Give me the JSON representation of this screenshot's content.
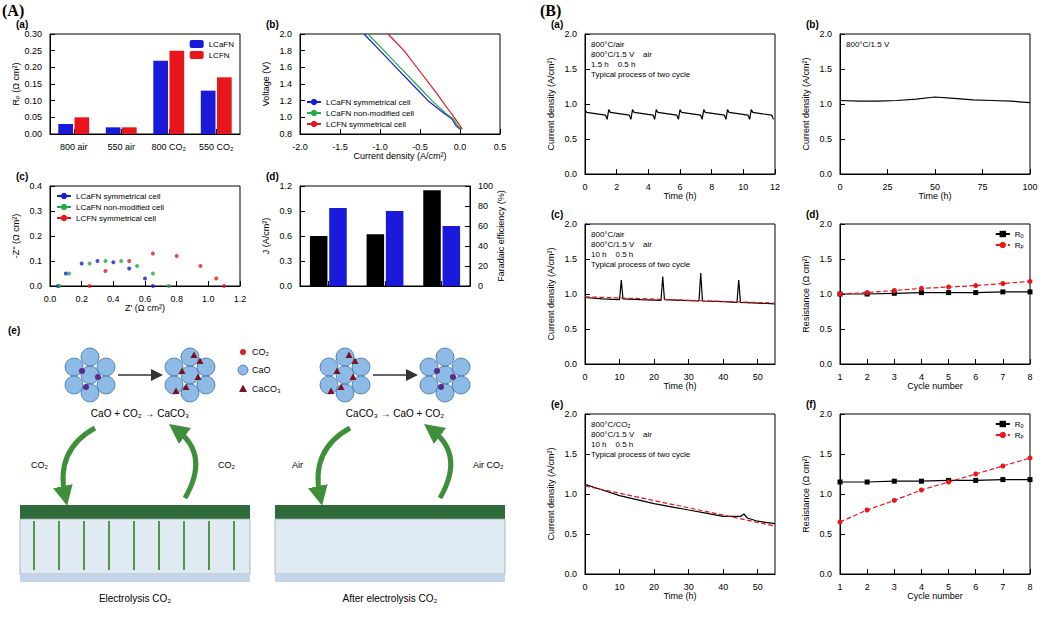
{
  "groups": [
    "(A)",
    "(B)"
  ],
  "chart_data": [
    {
      "title": "(a)",
      "type": "bar",
      "categories": [
        "800 air",
        "550 air",
        "800 CO₂",
        "550 CO₂"
      ],
      "series": [
        {
          "name": "LCaFN",
          "color": "#1a1adb",
          "values": [
            0.03,
            0.02,
            0.22,
            0.13
          ]
        },
        {
          "name": "LCFN",
          "color": "#e8161b",
          "values": [
            0.05,
            0.02,
            0.25,
            0.17
          ]
        }
      ],
      "y_label": "Rₚ (Ω cm²)",
      "ylim": [
        0,
        0.3
      ],
      "yticks": [
        {
          "value": 0,
          "label": "0.00"
        },
        0.05,
        {
          "value": 0.1,
          "label": "0.10"
        },
        0.15,
        {
          "value": 0.2,
          "label": "0.20"
        },
        0.25,
        {
          "value": 0.3,
          "label": "0.30"
        }
      ],
      "legend": "upper right"
    },
    {
      "title": "(b)",
      "type": "line",
      "series": [
        {
          "name": "LCaFN symmetrical cell",
          "color": "#1a1adb",
          "x": [
            -1.2,
            -1.0,
            -0.8,
            -0.6,
            -0.4,
            -0.2,
            -0.1,
            -0.05,
            0.0
          ],
          "values": [
            2.0,
            1.8,
            1.6,
            1.4,
            1.2,
            1.05,
            0.98,
            0.9,
            0.86
          ]
        },
        {
          "name": "LCaFN non-modified cell",
          "color": "#22aa44",
          "x": [
            -1.15,
            -0.95,
            -0.75,
            -0.55,
            -0.35,
            -0.18,
            -0.08,
            -0.03,
            0.02
          ],
          "values": [
            2.0,
            1.8,
            1.6,
            1.4,
            1.2,
            1.05,
            0.98,
            0.9,
            0.86
          ]
        },
        {
          "name": "LCFN symmetrical cell",
          "color": "#e8161b",
          "x": [
            -0.9,
            -0.7,
            -0.5,
            -0.3,
            -0.15,
            -0.05,
            0.0,
            0.03
          ],
          "values": [
            2.0,
            1.8,
            1.55,
            1.3,
            1.1,
            0.97,
            0.9,
            0.86
          ]
        }
      ],
      "x_label": "Current density (A/cm²)",
      "y_label": "Voltage (V)",
      "xlim": [
        -2.0,
        0.5
      ],
      "xticks": [
        {
          "value": -2.0,
          "label": "-2.0"
        },
        -1.5,
        {
          "value": -1.0,
          "label": "-1.0"
        },
        -0.5,
        {
          "value": 0,
          "label": "0.0"
        },
        0.5
      ],
      "ylim": [
        0.8,
        2.0
      ],
      "yticks": [
        0.8,
        {
          "value": 1.0,
          "label": "1.0"
        },
        1.2,
        1.4,
        1.6,
        1.8,
        {
          "value": 2.0,
          "label": "2.0"
        }
      ],
      "legend": "lower left"
    },
    {
      "title": "(c)",
      "type": "scatter",
      "marker": "circle",
      "series": [
        {
          "name": "LCaFN symmetrical cell",
          "color": "#1a1adb",
          "x": [
            0.05,
            0.1,
            0.2,
            0.3,
            0.4,
            0.5,
            0.6,
            0.65
          ],
          "values": [
            0,
            0.05,
            0.09,
            0.1,
            0.095,
            0.07,
            0.03,
            0
          ]
        },
        {
          "name": "LCaFN non-modified cell",
          "color": "#22aa44",
          "x": [
            0.06,
            0.12,
            0.25,
            0.35,
            0.45,
            0.55,
            0.65,
            0.75
          ],
          "values": [
            0,
            0.05,
            0.09,
            0.1,
            0.1,
            0.08,
            0.05,
            0
          ]
        },
        {
          "name": "LCFN symmetrical cell",
          "color": "#e8161b",
          "x": [
            0.25,
            0.35,
            0.5,
            0.65,
            0.8,
            0.95,
            1.05,
            1.1
          ],
          "values": [
            0,
            0.06,
            0.1,
            0.13,
            0.12,
            0.08,
            0.03,
            0
          ]
        }
      ],
      "x_label": "Z' (Ω cm²)",
      "y_label": "-Z'' (Ω cm²)",
      "xlim": [
        0,
        1.2
      ],
      "xticks": [
        {
          "value": 0,
          "label": "0.0"
        },
        0.2,
        0.4,
        0.6,
        0.8,
        {
          "value": 1.0,
          "label": "1.0"
        },
        1.2
      ],
      "ylim": [
        0,
        0.4
      ],
      "yticks": [
        {
          "value": 0,
          "label": "0.0"
        },
        0.1,
        0.2,
        0.3,
        0.4
      ],
      "legend": "upper left"
    },
    {
      "title": "(d)",
      "type": "bar",
      "categories": [
        null,
        null,
        null
      ],
      "series": [
        {
          "color": "#000000",
          "values": [
            0.6,
            0.62,
            1.15
          ]
        },
        {
          "color": "#1a1adb",
          "values": [
            78,
            75,
            60
          ],
          "axis": "y2"
        }
      ],
      "y_label": "J (A/cm²)",
      "y2_label": "Faradaic efficiency (%)",
      "ylim": [
        0,
        1.2
      ],
      "yticks": [
        {
          "value": 0,
          "label": "0.0"
        },
        0.3,
        0.6,
        0.9,
        1.2
      ],
      "y2lim": [
        0,
        100
      ],
      "y2ticks": [
        0,
        20,
        40,
        60,
        80,
        100
      ]
    },
    {
      "title": "(a)",
      "type": "line",
      "series": [
        {
          "color": "#000000",
          "x": [
            0,
            0.1,
            1.3,
            1.4,
            1.5,
            1.6,
            2.8,
            2.9,
            3,
            3.1,
            4.3,
            4.4,
            4.5,
            4.6,
            5.8,
            5.9,
            6,
            6.1,
            7.3,
            7.4,
            7.5,
            7.6,
            8.8,
            8.9,
            9,
            9.1,
            10.3,
            10.4,
            10.5,
            10.6,
            11.8,
            11.9
          ],
          "values": [
            0.92,
            0.88,
            0.84,
            0.78,
            0.92,
            0.88,
            0.84,
            0.78,
            0.92,
            0.88,
            0.84,
            0.78,
            0.92,
            0.88,
            0.84,
            0.78,
            0.92,
            0.88,
            0.84,
            0.78,
            0.92,
            0.88,
            0.84,
            0.78,
            0.92,
            0.88,
            0.84,
            0.78,
            0.92,
            0.88,
            0.84,
            0.78
          ]
        }
      ],
      "annotations": [
        "800°C/air",
        "800°C/1.5 V    air",
        "1.5 h    0.5 h",
        "Typical process of two cycle"
      ],
      "x_label": "Time (h)",
      "y_label": "Current density (A/cm²)",
      "xlim": [
        0,
        12
      ],
      "xticks": [
        0,
        2,
        4,
        6,
        8,
        10,
        12
      ],
      "ylim": [
        0,
        2.0
      ],
      "yticks": [
        {
          "value": 0,
          "label": "0.0"
        },
        0.5,
        {
          "value": 1.0,
          "label": "1.0"
        },
        1.5,
        {
          "value": 2.0,
          "label": "2.0"
        }
      ]
    },
    {
      "title": "(b)",
      "type": "line",
      "series": [
        {
          "color": "#000000",
          "x": [
            0,
            10,
            20,
            30,
            40,
            50,
            60,
            70,
            80,
            90,
            100
          ],
          "values": [
            1.05,
            1.04,
            1.04,
            1.05,
            1.07,
            1.1,
            1.08,
            1.06,
            1.05,
            1.04,
            1.02
          ]
        }
      ],
      "annotations": [
        "800°C/1.5 V"
      ],
      "x_label": "Time (h)",
      "y_label": "Current density (A/cm²)",
      "xlim": [
        0,
        100
      ],
      "xticks": [
        0,
        25,
        50,
        75,
        100
      ],
      "ylim": [
        0,
        2.0
      ],
      "yticks": [
        {
          "value": 0,
          "label": "0.0"
        },
        0.5,
        {
          "value": 1.0,
          "label": "1.0"
        },
        1.5,
        {
          "value": 2.0,
          "label": "2.0"
        }
      ]
    },
    {
      "title": "(c)",
      "type": "line",
      "series": [
        {
          "color": "#000000",
          "x": [
            0,
            5,
            10,
            10.5,
            11,
            16,
            22,
            22.5,
            23,
            28,
            33,
            33.5,
            34,
            40,
            44,
            44.5,
            45,
            50,
            55
          ],
          "values": [
            0.95,
            0.93,
            0.92,
            1.2,
            0.93,
            0.92,
            0.91,
            1.25,
            0.92,
            0.91,
            0.9,
            1.3,
            0.9,
            0.89,
            0.88,
            1.2,
            0.88,
            0.87,
            0.86
          ]
        },
        {
          "color": "#e8161b",
          "line_style": "dashed",
          "x": [
            0,
            55
          ],
          "values": [
            0.96,
            0.87
          ]
        }
      ],
      "annotations": [
        "800°C/air",
        "800°C/1.5 V    air",
        "10 h    0.5 h",
        "Typical process of two cycle"
      ],
      "x_label": "Time (h)",
      "y_label": "Current density (A/cm²)",
      "xlim": [
        0,
        55
      ],
      "xticks": [
        0,
        10,
        20,
        30,
        40,
        50
      ],
      "ylim": [
        0,
        2.0
      ],
      "yticks": [
        {
          "value": 0,
          "label": "0.0"
        },
        0.5,
        {
          "value": 1.0,
          "label": "1.0"
        },
        1.5,
        {
          "value": 2.0,
          "label": "2.0"
        }
      ]
    },
    {
      "title": "(d)",
      "type": "line",
      "series": [
        {
          "name": "Rₒ",
          "color": "#000000",
          "marker": "square",
          "x": [
            1,
            2,
            3,
            4,
            5,
            6,
            7,
            8
          ],
          "values": [
            1.0,
            1.0,
            1.01,
            1.02,
            1.02,
            1.02,
            1.03,
            1.03
          ]
        },
        {
          "name": "Rₚ",
          "color": "#e8161b",
          "marker": "circle",
          "line_style": "dashed",
          "x": [
            1,
            2,
            3,
            4,
            5,
            6,
            7,
            8
          ],
          "values": [
            1.0,
            1.02,
            1.05,
            1.08,
            1.1,
            1.12,
            1.15,
            1.18
          ]
        }
      ],
      "x_label": "Cycle number",
      "y_label": "Resistance (Ω cm²)",
      "xlim": [
        1,
        8
      ],
      "xticks": [
        1,
        2,
        3,
        4,
        5,
        6,
        7,
        8
      ],
      "ylim": [
        0,
        2.0
      ],
      "yticks": [
        {
          "value": 0,
          "label": "0.0"
        },
        0.5,
        {
          "value": 1.0,
          "label": "1.0"
        },
        1.5,
        {
          "value": 2.0,
          "label": "2.0"
        }
      ],
      "legend": "upper right"
    },
    {
      "title": "(e)",
      "type": "line",
      "series": [
        {
          "color": "#000000",
          "x": [
            0,
            5,
            10,
            15,
            20,
            25,
            30,
            35,
            40,
            45,
            46,
            47,
            50,
            55
          ],
          "values": [
            1.12,
            1.05,
            0.98,
            0.93,
            0.88,
            0.84,
            0.8,
            0.76,
            0.72,
            0.72,
            0.75,
            0.7,
            0.66,
            0.63
          ]
        },
        {
          "color": "#e8161b",
          "line_style": "dashed",
          "x": [
            0,
            55
          ],
          "values": [
            1.1,
            0.6
          ]
        }
      ],
      "annotations": [
        "800°C/CO₂",
        "800°C/1.5 V    air",
        "10 h    0.5 h",
        "Typical process of two cycle"
      ],
      "x_label": "Time (h)",
      "y_label": "Current density (A/cm²)",
      "xlim": [
        0,
        55
      ],
      "xticks": [
        0,
        10,
        20,
        30,
        40,
        50
      ],
      "ylim": [
        0,
        2.0
      ],
      "yticks": [
        {
          "value": 0,
          "label": "0.0"
        },
        0.5,
        {
          "value": 1.0,
          "label": "1.0"
        },
        1.5,
        {
          "value": 2.0,
          "label": "2.0"
        }
      ]
    },
    {
      "title": "(f)",
      "type": "line",
      "series": [
        {
          "name": "Rₒ",
          "color": "#000000",
          "marker": "square",
          "x": [
            1,
            2,
            3,
            4,
            5,
            6,
            7,
            8
          ],
          "values": [
            1.15,
            1.15,
            1.16,
            1.16,
            1.17,
            1.17,
            1.18,
            1.18
          ]
        },
        {
          "name": "Rₚ",
          "color": "#e8161b",
          "marker": "circle",
          "line_style": "dashed",
          "x": [
            1,
            2,
            3,
            4,
            5,
            6,
            7,
            8
          ],
          "values": [
            0.65,
            0.8,
            0.92,
            1.05,
            1.15,
            1.25,
            1.35,
            1.45
          ]
        }
      ],
      "x_label": "Cycle number",
      "y_label": "Resistance (Ω cm²)",
      "xlim": [
        1,
        8
      ],
      "xticks": [
        1,
        2,
        3,
        4,
        5,
        6,
        7,
        8
      ],
      "ylim": [
        0,
        2.0
      ],
      "yticks": [
        {
          "value": 0,
          "label": "0.0"
        },
        0.5,
        {
          "value": 1.0,
          "label": "1.0"
        },
        1.5,
        {
          "value": 2.0,
          "label": "2.0"
        }
      ],
      "legend": "upper right"
    }
  ],
  "schematic": {
    "label": "(e)",
    "key": [
      "CO₂",
      "CaO",
      "CaCO₃"
    ],
    "panels": [
      {
        "reaction": "CaO + CO₂ → CaCO₃",
        "arrow_labels": [
          "CO₂",
          "CO₂"
        ],
        "caption": "Electrolysis CO₂"
      },
      {
        "reaction": "CaCO₃ → CaO + CO₂",
        "arrow_labels": [
          "Air",
          "Air CO₂"
        ],
        "caption": "After electrolysis CO₂"
      }
    ]
  }
}
